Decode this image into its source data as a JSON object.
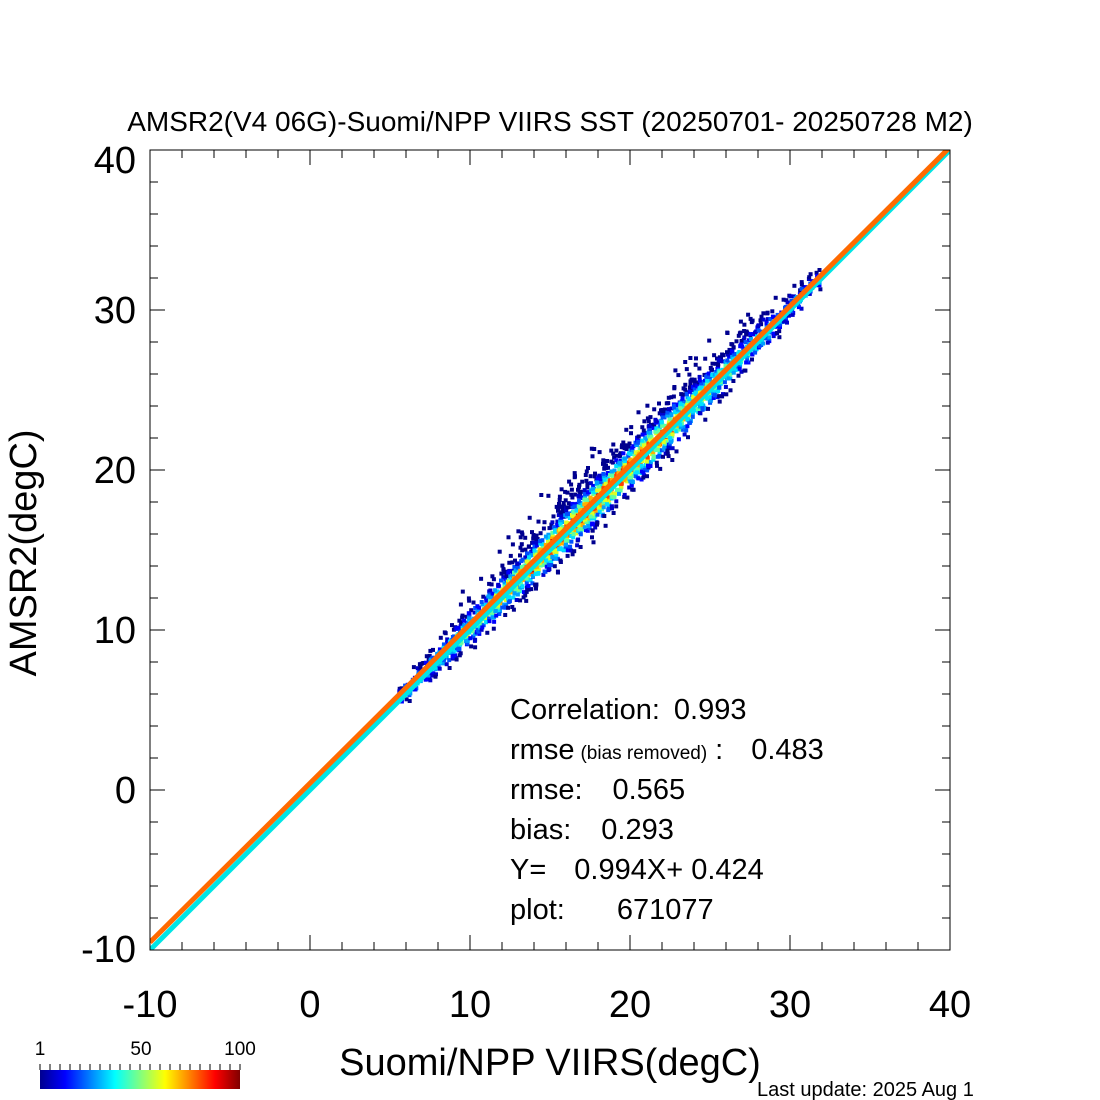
{
  "chart_data": {
    "type": "heatmap",
    "title": "AMSR2(V4 06G)-Suomi/NPP VIIRS SST (20250701- 20250728 M2)",
    "xlabel": "Suomi/NPP VIIRS(degC)",
    "ylabel": "AMSR2(degC)",
    "xlim": [
      -10,
      40
    ],
    "ylim": [
      -10,
      40
    ],
    "xticks": [
      -10,
      0,
      10,
      20,
      30,
      40
    ],
    "yticks": [
      -10,
      0,
      10,
      20,
      30,
      40
    ],
    "density_ridge": {
      "description_x": [
        6,
        10,
        15,
        20,
        25,
        30
      ],
      "y_center": [
        6.4,
        10.4,
        15.3,
        20.3,
        25.3,
        30.3
      ]
    },
    "lines": [
      {
        "name": "1:1",
        "color": "#00e5e5",
        "slope": 1.0,
        "intercept": 0.0
      },
      {
        "name": "fit",
        "color": "#ff6a00",
        "slope": 0.994,
        "intercept": 0.424
      }
    ],
    "stats": {
      "correlation_label": "Correlation:",
      "correlation_value": "0.993",
      "rmse_br_label": "rmse",
      "rmse_br_note": "(bias removed)",
      "rmse_br_sep": ":",
      "rmse_br_value": "0.483",
      "rmse_label": "rmse:",
      "rmse_value": "0.565",
      "bias_label": "bias:",
      "bias_value": "0.293",
      "fit_label": "Y=",
      "fit_value": "0.994X+  0.424",
      "plot_label": "plot:",
      "plot_value": "671077"
    },
    "colorbar": {
      "min_label": "1",
      "mid_label": "50",
      "max_label": "100",
      "colors": [
        "#00008f",
        "#0000ff",
        "#0080ff",
        "#00ffff",
        "#80ff80",
        "#ffff00",
        "#ff8000",
        "#ff0000",
        "#800000"
      ]
    },
    "grid": false
  },
  "footer": {
    "last_update": "Last update: 2025 Aug  1"
  }
}
